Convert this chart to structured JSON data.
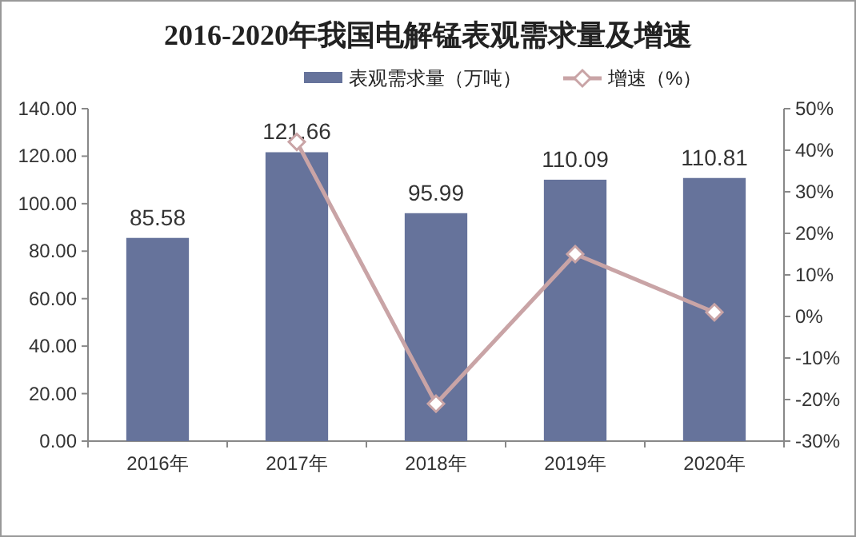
{
  "chart_data": {
    "type": "bar",
    "title": "2016-2020年我国电解锰表观需求量及增速",
    "categories": [
      "2016年",
      "2017年",
      "2018年",
      "2019年",
      "2020年"
    ],
    "series": [
      {
        "name": "表观需求量（万吨）",
        "color": "#66739b",
        "values": [
          85.58,
          121.66,
          95.99,
          110.09,
          110.81
        ],
        "value_labels": [
          "85.58",
          "121.66",
          "95.99",
          "110.09",
          "110.81"
        ]
      },
      {
        "name": "增速（%）",
        "type": "line",
        "axis": "y2",
        "color": "#c9a4a6",
        "marker": "diamond",
        "values": [
          null,
          42,
          -21,
          15,
          1
        ]
      }
    ],
    "ylim": [
      0,
      140
    ],
    "yticks": [
      {
        "value": 0,
        "label": "0.00"
      },
      {
        "value": 20,
        "label": "20.00"
      },
      {
        "value": 40,
        "label": "40.00"
      },
      {
        "value": 60,
        "label": "60.00"
      },
      {
        "value": 80,
        "label": "80.00"
      },
      {
        "value": 100,
        "label": "100.00"
      },
      {
        "value": 120,
        "label": "120.00"
      },
      {
        "value": 140,
        "label": "140.00"
      }
    ],
    "y2lim": [
      -30,
      50
    ],
    "y2ticks": [
      {
        "value": -30,
        "label": "-30%"
      },
      {
        "value": -20,
        "label": "-20%"
      },
      {
        "value": -10,
        "label": "-10%"
      },
      {
        "value": 0,
        "label": "0%"
      },
      {
        "value": 10,
        "label": "10%"
      },
      {
        "value": 20,
        "label": "20%"
      },
      {
        "value": 30,
        "label": "30%"
      },
      {
        "value": 40,
        "label": "40%"
      },
      {
        "value": 50,
        "label": "50%"
      }
    ],
    "grid": false,
    "legend": "top"
  }
}
